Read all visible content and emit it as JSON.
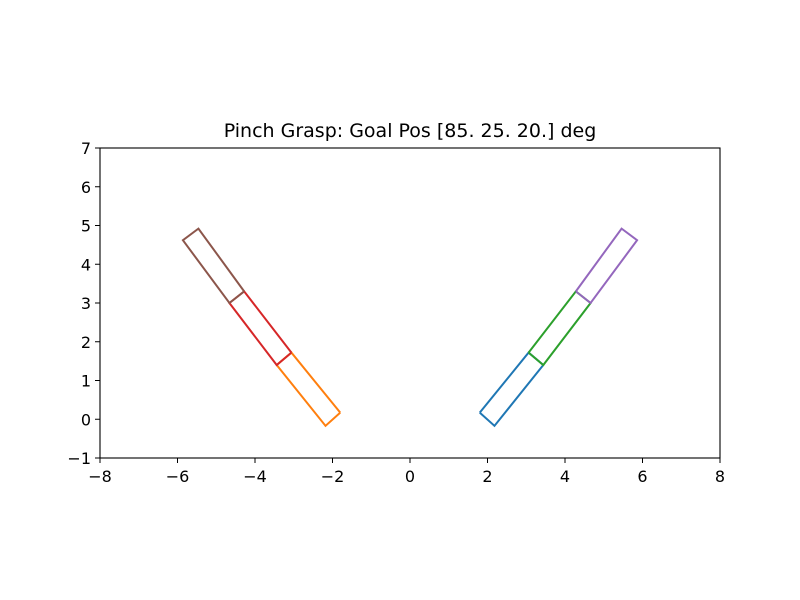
{
  "chart_data": {
    "type": "line",
    "title": "Pinch Grasp: Goal Pos [85. 25. 20.] deg",
    "xlabel": "",
    "ylabel": "",
    "xlim": [
      -8,
      8
    ],
    "ylim": [
      -1,
      7
    ],
    "xticks": [
      -8,
      -6,
      -4,
      -2,
      0,
      2,
      4,
      6,
      8
    ],
    "xtick_labels": [
      "−8",
      "−6",
      "−4",
      "−2",
      "0",
      "2",
      "4",
      "6",
      "8"
    ],
    "yticks": [
      -1,
      0,
      1,
      2,
      3,
      4,
      5,
      6,
      7
    ],
    "ytick_labels": [
      "−1",
      "0",
      "1",
      "2",
      "3",
      "4",
      "5",
      "6",
      "7"
    ],
    "grid": false,
    "legend": false,
    "series": [
      {
        "color": "#1f77b4",
        "x": [
          1.8,
          2.18,
          3.44,
          3.06,
          1.8
        ],
        "y": [
          0.17,
          -0.17,
          1.4,
          1.72,
          0.17
        ]
      },
      {
        "color": "#ff7f0e",
        "x": [
          -1.8,
          -2.18,
          -3.44,
          -3.06,
          -1.8
        ],
        "y": [
          0.17,
          -0.17,
          1.4,
          1.72,
          0.17
        ]
      },
      {
        "color": "#2ca02c",
        "x": [
          3.06,
          3.44,
          4.66,
          4.28,
          3.06
        ],
        "y": [
          1.72,
          1.4,
          3.0,
          3.3,
          1.72
        ]
      },
      {
        "color": "#d62728",
        "x": [
          -3.06,
          -3.44,
          -4.66,
          -4.28,
          -3.06
        ],
        "y": [
          1.72,
          1.4,
          3.0,
          3.3,
          1.72
        ]
      },
      {
        "color": "#9467bd",
        "x": [
          4.28,
          4.66,
          5.86,
          5.46,
          4.28
        ],
        "y": [
          3.3,
          3.0,
          4.62,
          4.92,
          3.3
        ]
      },
      {
        "color": "#8c564b",
        "x": [
          -4.28,
          -4.66,
          -5.86,
          -5.46,
          -4.28
        ],
        "y": [
          3.3,
          3.0,
          4.62,
          4.92,
          3.3
        ]
      }
    ]
  }
}
